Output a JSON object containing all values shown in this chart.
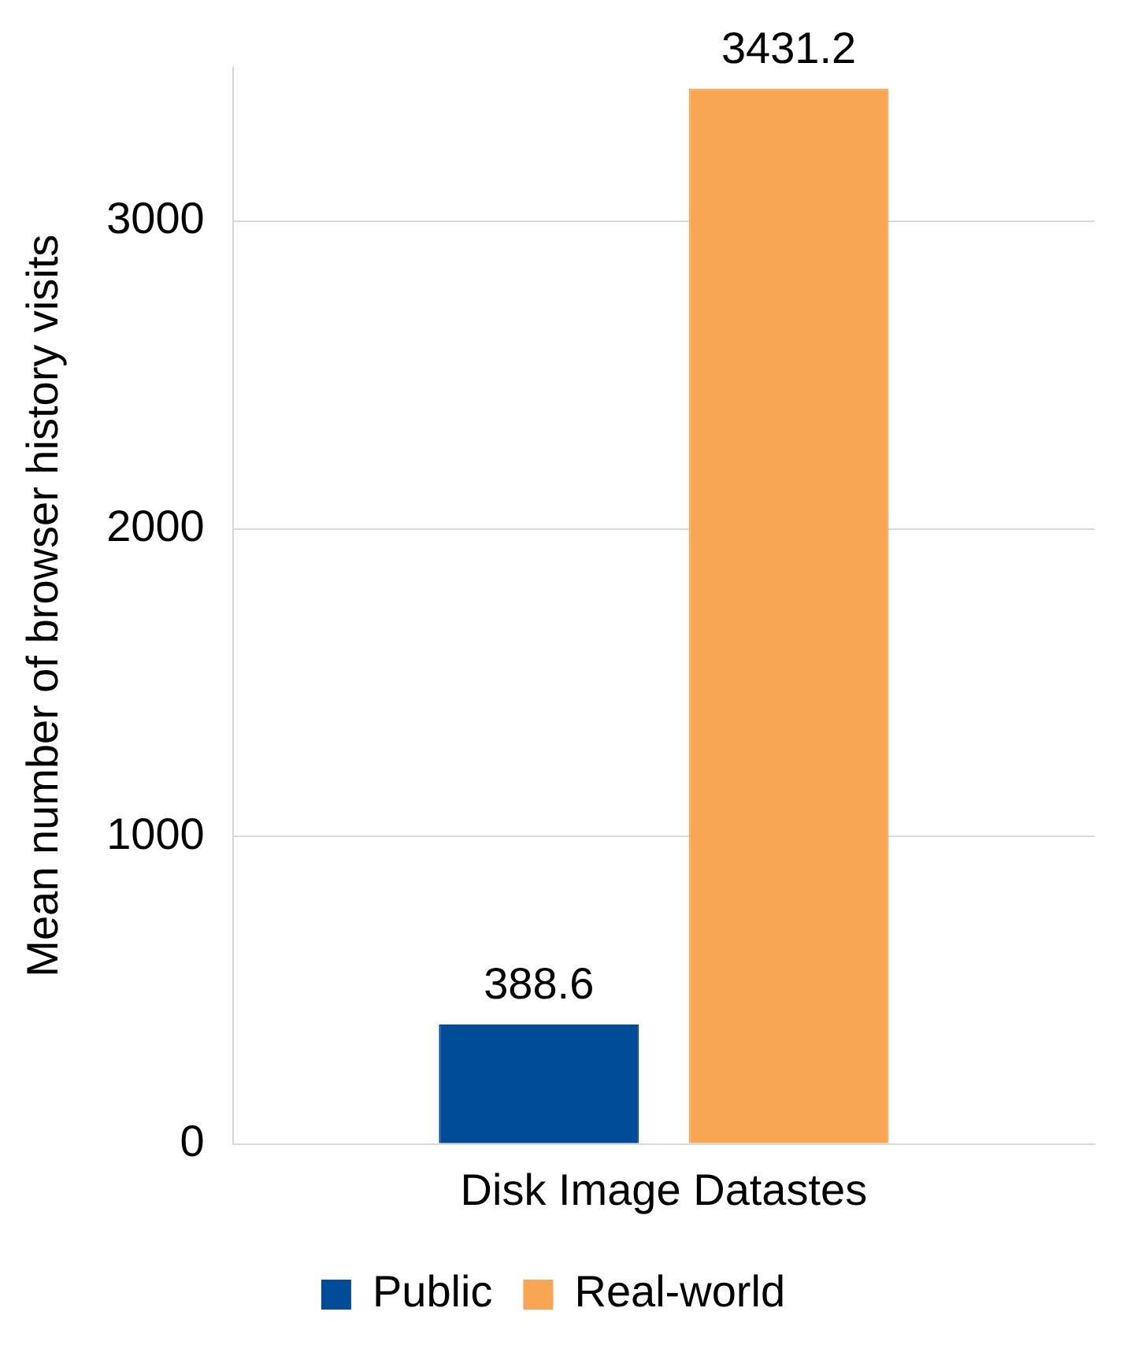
{
  "chart_data": {
    "type": "bar",
    "ylabel": "Mean number of browser history visits",
    "categories": [
      "Disk Image Datastes"
    ],
    "series": [
      {
        "name": "Public",
        "color": "#004c99",
        "values": [
          388.6
        ]
      },
      {
        "name": "Real-world",
        "color": "#f8a654",
        "values": [
          3431.2
        ]
      }
    ],
    "ylim": [
      0,
      3500
    ],
    "yticks": [
      0,
      1000,
      2000,
      3000
    ],
    "grid": "y",
    "legend": "bottom",
    "data_labels": true
  }
}
